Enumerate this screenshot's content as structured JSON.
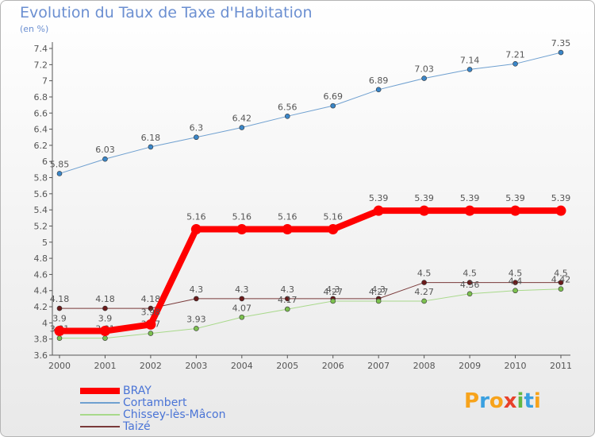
{
  "title": "Evolution du Taux de Taxe d'Habitation",
  "unit_label": "(en %)",
  "logo": {
    "letters": [
      "P",
      "r",
      "o",
      "x",
      "i",
      "t",
      "i"
    ],
    "colors": [
      "#f7a31b",
      "#3aa0e0",
      "#f7a31b",
      "#e8412a",
      "#63b843",
      "#3aa0e0",
      "#f7a31b"
    ]
  },
  "chart_data": {
    "type": "line",
    "x": [
      "2000",
      "2001",
      "2002",
      "2003",
      "2004",
      "2005",
      "2006",
      "2007",
      "2008",
      "2009",
      "2010",
      "2011"
    ],
    "ylim": [
      3.6,
      7.4
    ],
    "yticks": [
      "3.6",
      "3.8",
      "4",
      "4.2",
      "4.4",
      "4.6",
      "4.8",
      "5",
      "5.2",
      "5.4",
      "5.6",
      "5.8",
      "6",
      "6.2",
      "6.4",
      "6.6",
      "6.8",
      "7",
      "7.2",
      "7.4"
    ],
    "grid": false,
    "legend_position": "bottom-left",
    "series": [
      {
        "name": "Cortambert",
        "color": "#6fa0d0",
        "marker": "#3a86c8",
        "width": 1,
        "values": [
          5.85,
          6.03,
          6.18,
          6.3,
          6.42,
          6.56,
          6.69,
          6.89,
          7.03,
          7.14,
          7.21,
          7.35
        ],
        "labels": [
          "5.85",
          "6.03",
          "6.18",
          "6.3",
          "6.42",
          "6.56",
          "6.69",
          "6.89",
          "7.03",
          "7.14",
          "7.21",
          "7.35"
        ]
      },
      {
        "name": "Taizé",
        "color": "#7a3a3a",
        "marker": "#6b1a1a",
        "width": 1,
        "values": [
          4.18,
          4.18,
          4.18,
          4.3,
          4.3,
          4.3,
          4.3,
          4.3,
          4.5,
          4.5,
          4.5,
          4.5
        ],
        "labels": [
          "4.18",
          "4.18",
          "4.18",
          "4.3",
          "4.3",
          "4.3",
          "4.3",
          "4.3",
          "4.5",
          "4.5",
          "4.5",
          "4.5"
        ]
      },
      {
        "name": "Chissey-lès-Mâcon",
        "color": "#a8d98a",
        "marker": "#7cc04f",
        "width": 1,
        "values": [
          3.81,
          3.81,
          3.87,
          3.93,
          4.07,
          4.17,
          4.27,
          4.27,
          4.27,
          4.36,
          4.4,
          4.42
        ],
        "labels": [
          "3.81",
          "3.81",
          "3.87",
          "3.93",
          "4.07",
          "4.17",
          "4.27",
          "4.27",
          "4.27",
          "4.36",
          "4.4",
          "4.42"
        ]
      },
      {
        "name": "BRAY",
        "color": "#ff0000",
        "marker": "#ff0000",
        "width": 8,
        "values": [
          3.9,
          3.9,
          3.98,
          5.16,
          5.16,
          5.16,
          5.16,
          5.39,
          5.39,
          5.39,
          5.39,
          5.39
        ],
        "labels": [
          "3.9",
          "3.9",
          "3.98",
          "5.16",
          "5.16",
          "5.16",
          "5.16",
          "5.39",
          "5.39",
          "5.39",
          "5.39",
          "5.39"
        ]
      }
    ],
    "legend": [
      {
        "name": "BRAY",
        "color": "#ff0000",
        "width": 8
      },
      {
        "name": "Cortambert",
        "color": "#6fa0d0",
        "width": 2
      },
      {
        "name": "Chissey-lès-Mâcon",
        "color": "#a8d98a",
        "width": 2
      },
      {
        "name": "Taizé",
        "color": "#7a3a3a",
        "width": 2
      }
    ]
  }
}
